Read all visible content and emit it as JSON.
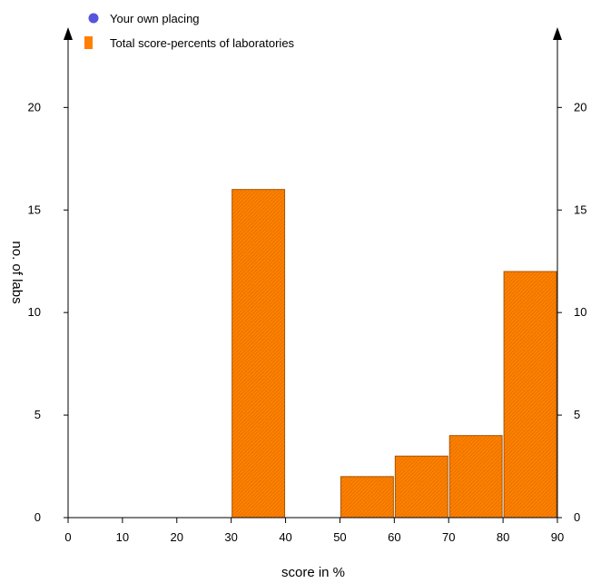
{
  "chart_data": {
    "type": "bar",
    "title": "",
    "xlabel": "score in %",
    "ylabel": "no. of labs",
    "xlim": [
      0,
      90
    ],
    "ylim": [
      0,
      24
    ],
    "x_ticks": [
      0,
      10,
      20,
      30,
      40,
      50,
      60,
      70,
      80,
      90
    ],
    "y_ticks": [
      0,
      5,
      10,
      15,
      20
    ],
    "bins": [
      {
        "from": 30,
        "to": 40,
        "value": 16
      },
      {
        "from": 50,
        "to": 60,
        "value": 2
      },
      {
        "from": 60,
        "to": 70,
        "value": 3
      },
      {
        "from": 70,
        "to": 80,
        "value": 4
      },
      {
        "from": 80,
        "to": 90,
        "value": 12
      }
    ],
    "legend": [
      {
        "label": "Your own placing",
        "marker": "circle",
        "color": "#5555dd"
      },
      {
        "label": "Total score-percents of laboratories",
        "marker": "square",
        "color": "#ff8000"
      }
    ],
    "legend_position": "top-left",
    "grid": false,
    "bar_color": "#ff8000",
    "secondary_y_axis": true
  }
}
